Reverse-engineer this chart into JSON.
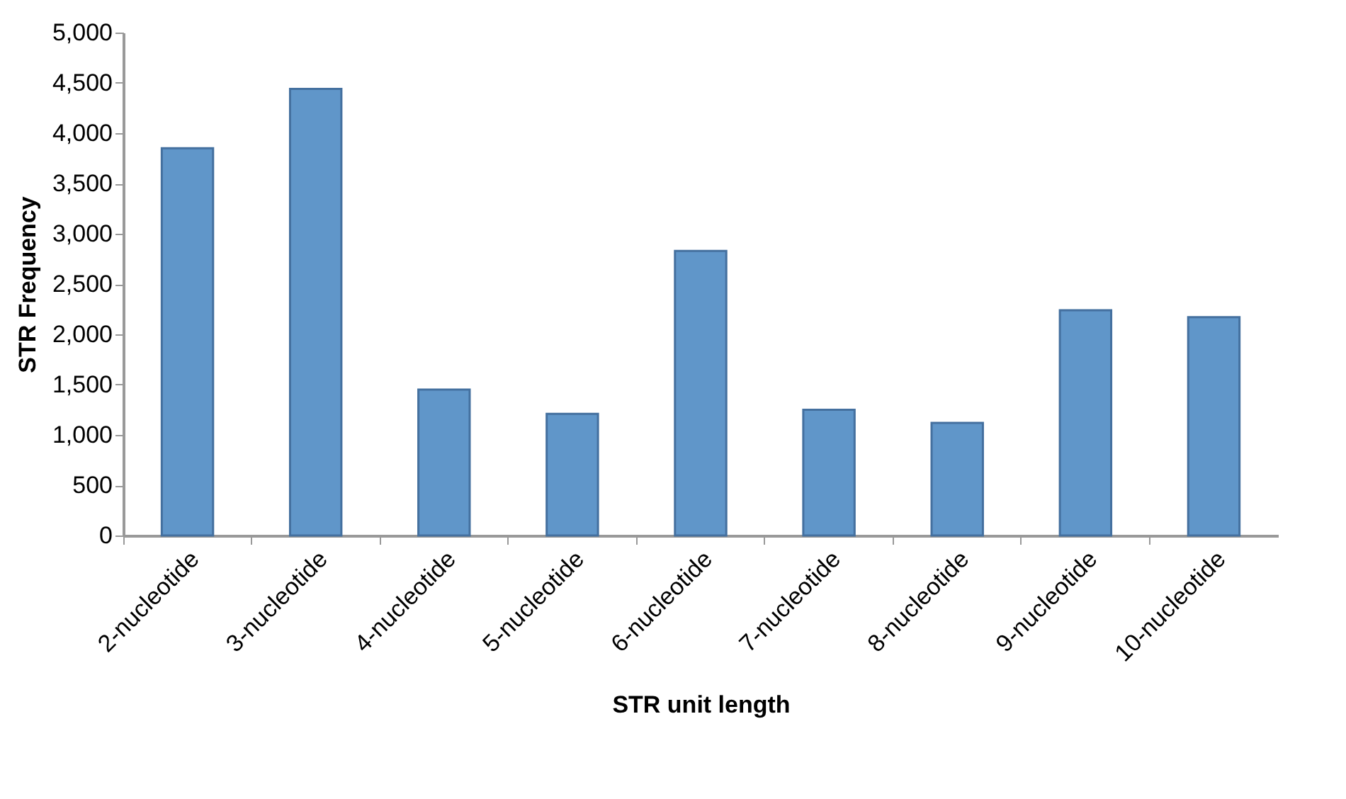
{
  "chart_data": {
    "type": "bar",
    "xlabel": "STR unit length",
    "ylabel": "STR Frequency",
    "categories": [
      "2-nucleotide",
      "3-nucleotide",
      "4-nucleotide",
      "5-nucleotide",
      "6-nucleotide",
      "7-nucleotide",
      "8-nucleotide",
      "9-nucleotide",
      "10-nucleotide"
    ],
    "values": [
      3850,
      4440,
      1450,
      1210,
      2830,
      1250,
      1120,
      2240,
      2170
    ],
    "color": "#6096c9",
    "ylim": [
      0,
      5000
    ],
    "yticks": [
      0,
      500,
      {
        "value": 1000,
        "label": "1,000"
      },
      {
        "value": 1500,
        "label": "1,500"
      },
      {
        "value": 2000,
        "label": "2,000"
      },
      {
        "value": 2500,
        "label": "2,500"
      },
      {
        "value": 3000,
        "label": "3,000"
      },
      {
        "value": 3500,
        "label": "3,500"
      },
      {
        "value": 4000,
        "label": "4,000"
      },
      {
        "value": 4500,
        "label": "4,500"
      },
      {
        "value": 5000,
        "label": "5,000"
      }
    ],
    "grid": false
  }
}
